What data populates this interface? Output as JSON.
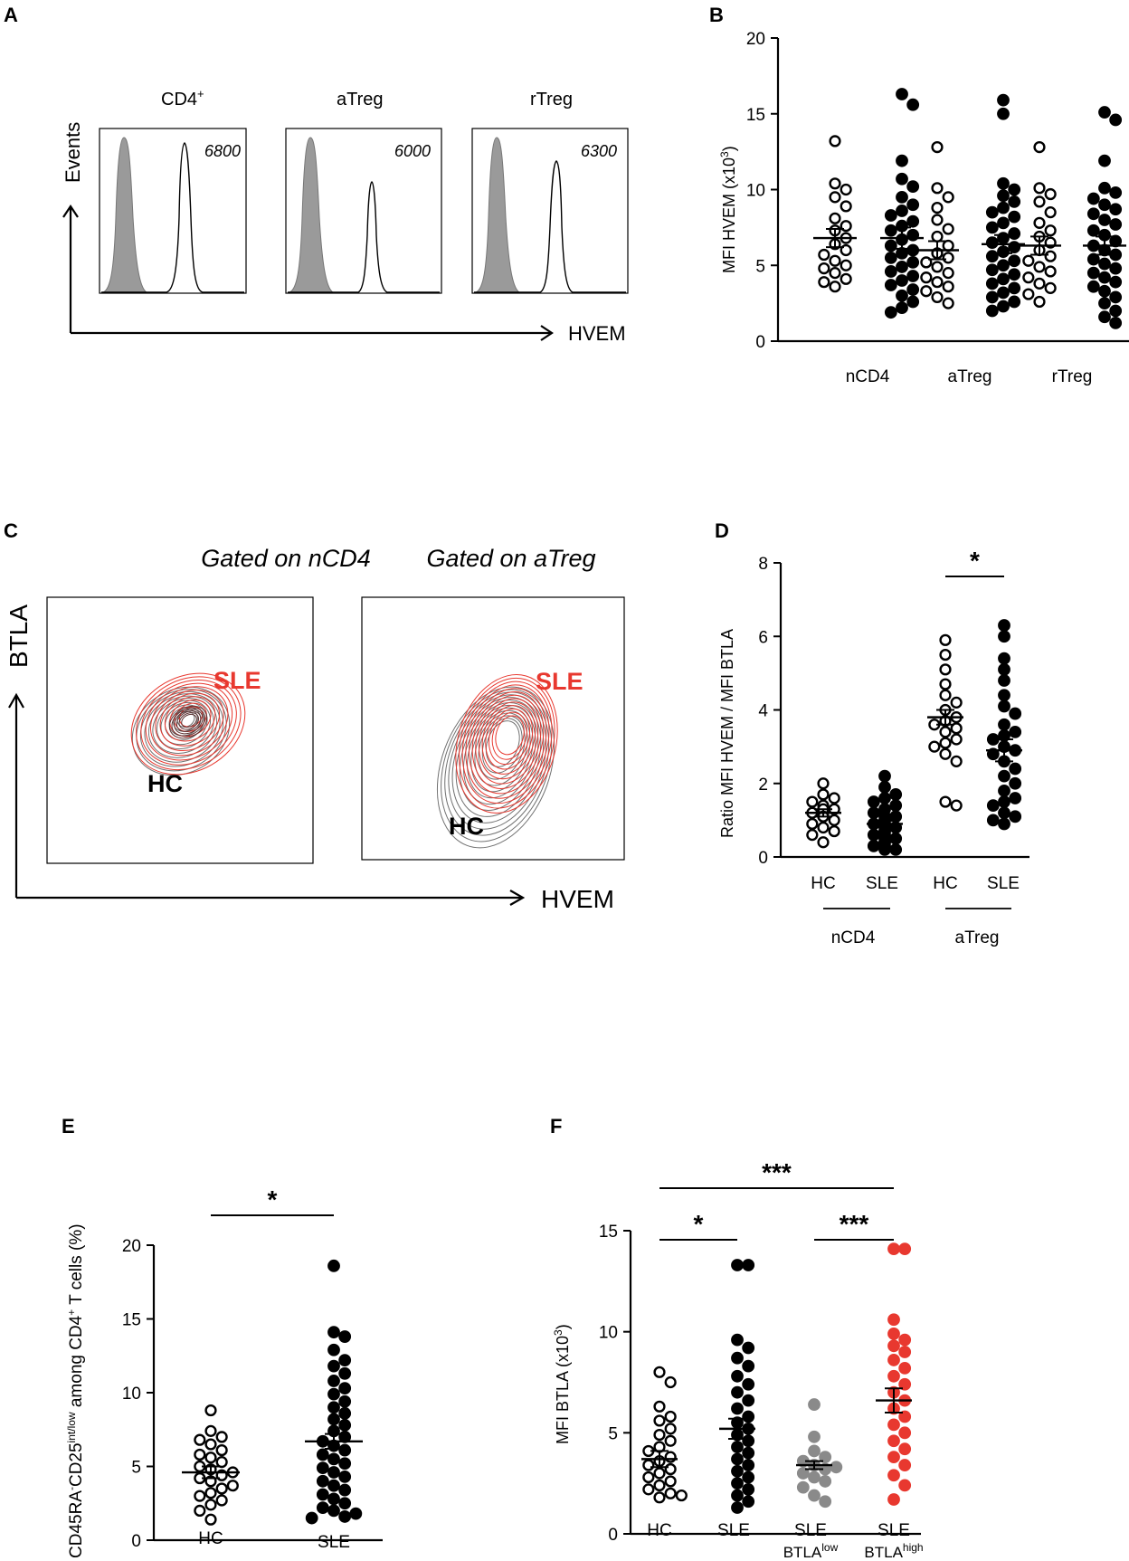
{
  "panels": {
    "A": {
      "letter": "A",
      "histograms": [
        {
          "title": "CD4",
          "title_sup": "+",
          "value": "6800"
        },
        {
          "title": "aTreg",
          "title_sup": "",
          "value": "6000"
        },
        {
          "title": "rTreg",
          "title_sup": "",
          "value": "6300"
        }
      ],
      "y_axis": "Events",
      "x_axis": "HVEM"
    },
    "C": {
      "letter": "C",
      "plots": [
        {
          "title": "Gated on nCD4",
          "sle": "SLE",
          "hc": "HC"
        },
        {
          "title": "Gated on aTreg",
          "sle": "SLE",
          "hc": "HC"
        }
      ],
      "y_axis": "BTLA",
      "x_axis": "HVEM"
    }
  },
  "colors": {
    "hc": "#000000",
    "sle": "#000000",
    "sle_high": "#e8382f",
    "sle_low": "#8a8a8a",
    "shade": "#9a9a9a",
    "contour_red": "#e8382f",
    "contour_gray": "#707070"
  },
  "chart_data": [
    {
      "id": "B",
      "letter": "B",
      "type": "scatter",
      "ylabel": "MFI HVEM (x10",
      "ylabel_sup": "3",
      "ylabel_end": ")",
      "ylim": [
        0,
        20
      ],
      "yticks": [
        "0",
        "5",
        "10",
        "15",
        "20"
      ],
      "groups": [
        "nCD4",
        "aTreg",
        "rTreg"
      ],
      "series": [
        {
          "name": "nCD4 HC",
          "fill": "open",
          "mean": 6.8,
          "sem": 0.6,
          "values": [
            13.2,
            10.4,
            10.0,
            9.5,
            8.9,
            8.1,
            7.6,
            7.3,
            6.8,
            6.4,
            6.0,
            5.7,
            5.3,
            5.0,
            4.8,
            4.5,
            4.1,
            3.9,
            3.6
          ]
        },
        {
          "name": "nCD4 SLE",
          "fill": "filled",
          "mean": 6.8,
          "sem": 0.7,
          "values": [
            16.3,
            15.6,
            11.9,
            10.7,
            10.2,
            9.5,
            9.0,
            8.6,
            8.3,
            7.9,
            7.6,
            7.3,
            7.0,
            6.7,
            6.3,
            6.0,
            5.8,
            5.5,
            5.2,
            4.9,
            4.6,
            4.3,
            4.0,
            3.7,
            3.4,
            3.0,
            2.6,
            2.2,
            1.9
          ]
        },
        {
          "name": "aTreg HC",
          "fill": "open",
          "mean": 6.0,
          "sem": 0.6,
          "values": [
            12.8,
            10.1,
            9.5,
            8.8,
            8.0,
            7.4,
            6.9,
            6.3,
            5.8,
            5.5,
            5.2,
            4.9,
            4.5,
            4.2,
            3.9,
            3.6,
            3.3,
            2.9,
            2.5
          ]
        },
        {
          "name": "aTreg SLE",
          "fill": "filled",
          "mean": 6.4,
          "sem": 0.6,
          "values": [
            15.9,
            15.0,
            10.4,
            10.0,
            9.6,
            9.2,
            8.8,
            8.5,
            8.2,
            7.8,
            7.5,
            7.1,
            6.8,
            6.5,
            6.2,
            5.9,
            5.6,
            5.3,
            5.0,
            4.7,
            4.4,
            4.1,
            3.8,
            3.5,
            3.2,
            2.9,
            2.6,
            2.3,
            2.0
          ]
        },
        {
          "name": "rTreg HC",
          "fill": "open",
          "mean": 6.3,
          "sem": 0.6,
          "values": [
            12.8,
            10.1,
            9.7,
            9.2,
            8.5,
            7.8,
            7.3,
            6.9,
            6.5,
            6.0,
            5.6,
            5.3,
            4.9,
            4.6,
            4.2,
            3.8,
            3.5,
            3.1,
            2.6
          ]
        },
        {
          "name": "rTreg SLE",
          "fill": "filled",
          "mean": 6.3,
          "sem": 0.6,
          "values": [
            15.1,
            14.6,
            11.9,
            10.1,
            9.8,
            9.4,
            9.0,
            8.7,
            8.4,
            8.0,
            7.7,
            7.3,
            7.0,
            6.6,
            6.3,
            6.0,
            5.7,
            5.4,
            5.1,
            4.8,
            4.5,
            4.2,
            3.9,
            3.6,
            3.3,
            2.9,
            2.5,
            2.0,
            1.6,
            1.2
          ]
        }
      ]
    },
    {
      "id": "D",
      "letter": "D",
      "type": "scatter",
      "ylabel": "Ratio MFI HVEM / MFI BTLA",
      "ylabel_sup": "",
      "ylabel_end": "",
      "ylim": [
        0,
        8
      ],
      "yticks": [
        "0",
        "2",
        "4",
        "6",
        "8"
      ],
      "categories": [
        "HC",
        "SLE",
        "HC",
        "SLE"
      ],
      "groups": [
        "nCD4",
        "aTreg"
      ],
      "significance": [
        {
          "label": "*",
          "from": 2,
          "to": 3
        }
      ],
      "series": [
        {
          "name": "nCD4 HC",
          "fill": "open",
          "mean": 1.2,
          "sem": 0.1,
          "values": [
            2.0,
            1.7,
            1.6,
            1.5,
            1.4,
            1.3,
            1.3,
            1.2,
            1.1,
            1.1,
            1.0,
            0.9,
            0.8,
            0.7,
            0.6,
            0.4
          ]
        },
        {
          "name": "nCD4 SLE",
          "fill": "filled",
          "mean": 0.9,
          "sem": 0.08,
          "values": [
            2.2,
            1.9,
            1.7,
            1.6,
            1.5,
            1.4,
            1.3,
            1.2,
            1.1,
            1.1,
            1.0,
            1.0,
            0.9,
            0.9,
            0.8,
            0.8,
            0.7,
            0.7,
            0.6,
            0.6,
            0.5,
            0.5,
            0.4,
            0.4,
            0.3,
            0.3,
            0.2,
            0.2
          ]
        },
        {
          "name": "aTreg HC",
          "fill": "open",
          "mean": 3.8,
          "sem": 0.2,
          "values": [
            5.9,
            5.5,
            5.1,
            4.7,
            4.4,
            4.2,
            4.0,
            3.8,
            3.7,
            3.6,
            3.5,
            3.4,
            3.2,
            3.1,
            3.0,
            2.8,
            2.6,
            1.5,
            1.4
          ]
        },
        {
          "name": "aTreg SLE",
          "fill": "filled",
          "mean": 2.9,
          "sem": 0.3,
          "values": [
            6.3,
            6.0,
            5.4,
            5.1,
            4.8,
            4.4,
            4.1,
            3.9,
            3.6,
            3.4,
            3.3,
            3.2,
            3.0,
            2.9,
            2.8,
            2.6,
            2.4,
            2.2,
            2.0,
            1.8,
            1.6,
            1.5,
            1.4,
            1.2,
            1.1,
            1.0,
            0.9
          ]
        }
      ]
    },
    {
      "id": "E",
      "letter": "E",
      "type": "scatter",
      "ylabel": "CD45RA-CD25int/low among CD4+ T cells (%)",
      "ylim": [
        0,
        20
      ],
      "yticks": [
        "0",
        "5",
        "10",
        "15",
        "20"
      ],
      "categories": [
        "HC",
        "SLE"
      ],
      "significance": [
        {
          "label": "*",
          "from": 0,
          "to": 1
        }
      ],
      "series": [
        {
          "name": "HC",
          "fill": "open",
          "mean": 4.6,
          "sem": 0.4,
          "values": [
            8.8,
            7.4,
            7.0,
            6.8,
            6.5,
            6.1,
            5.8,
            5.6,
            5.3,
            5.0,
            4.8,
            4.6,
            4.4,
            4.2,
            4.0,
            3.7,
            3.5,
            3.2,
            3.0,
            2.7,
            2.4,
            2.0,
            1.4
          ]
        },
        {
          "name": "SLE",
          "fill": "filled",
          "mean": 6.7,
          "sem": 0.5,
          "values": [
            18.6,
            14.1,
            13.8,
            12.9,
            12.2,
            11.8,
            11.3,
            10.8,
            10.3,
            9.9,
            9.4,
            9.0,
            8.6,
            8.2,
            7.8,
            7.4,
            7.0,
            6.7,
            6.4,
            6.1,
            5.8,
            5.5,
            5.2,
            4.9,
            4.6,
            4.3,
            4.0,
            3.7,
            3.4,
            3.1,
            2.8,
            2.5,
            2.2,
            2.0,
            1.8,
            1.6,
            1.5
          ]
        }
      ]
    },
    {
      "id": "F",
      "letter": "F",
      "type": "scatter",
      "ylabel": "MFI BTLA (x10",
      "ylabel_sup": "3",
      "ylabel_end": ")",
      "ylim": [
        0,
        15
      ],
      "yticks": [
        "0",
        "5",
        "10",
        "15"
      ],
      "categories": [
        "HC",
        "SLE",
        "SLE",
        "SLE"
      ],
      "category_sub": [
        "",
        "",
        "BTLA",
        "BTLA"
      ],
      "category_sub_sup": [
        "",
        "",
        "low",
        "high"
      ],
      "significance": [
        {
          "label": "*",
          "from": 0,
          "to": 1
        },
        {
          "label": "***",
          "from": 0,
          "to": 3
        },
        {
          "label": "***",
          "from": 2,
          "to": 3
        }
      ],
      "series": [
        {
          "name": "HC",
          "fill": "open",
          "mean": 3.7,
          "sem": 0.4,
          "values": [
            8.0,
            7.5,
            6.3,
            5.8,
            5.6,
            5.2,
            4.9,
            4.6,
            4.3,
            4.1,
            3.8,
            3.6,
            3.4,
            3.2,
            3.0,
            2.8,
            2.6,
            2.4,
            2.2,
            2.0,
            1.9,
            1.8
          ]
        },
        {
          "name": "SLE",
          "fill": "filled",
          "mean": 5.2,
          "sem": 0.5,
          "values": [
            13.3,
            13.3,
            9.6,
            9.2,
            8.7,
            8.3,
            7.8,
            7.4,
            7.0,
            6.6,
            6.2,
            5.8,
            5.5,
            5.2,
            4.9,
            4.6,
            4.3,
            4.0,
            3.7,
            3.4,
            3.1,
            2.8,
            2.5,
            2.2,
            1.9,
            1.6,
            1.3
          ]
        },
        {
          "name": "SLE BTLA low",
          "fill": "gray",
          "mean": 3.4,
          "sem": 0.2,
          "values": [
            6.4,
            4.8,
            4.1,
            3.8,
            3.6,
            3.4,
            3.3,
            3.2,
            3.0,
            2.8,
            2.6,
            2.3,
            1.9,
            1.6
          ]
        },
        {
          "name": "SLE BTLA high",
          "fill": "red",
          "mean": 6.6,
          "sem": 0.6,
          "values": [
            14.1,
            14.1,
            10.6,
            9.9,
            9.6,
            9.3,
            9.0,
            8.6,
            8.2,
            7.8,
            7.4,
            7.0,
            6.6,
            6.2,
            5.8,
            5.4,
            5.0,
            4.6,
            4.2,
            3.8,
            3.4,
            2.9,
            2.4,
            1.7
          ]
        }
      ]
    }
  ]
}
